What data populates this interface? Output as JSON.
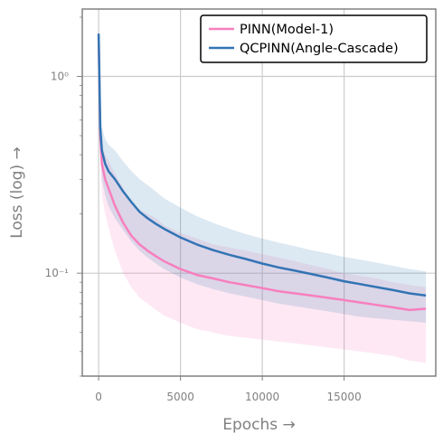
{
  "chart_data": {
    "type": "line",
    "title": "",
    "xlabel": "Epochs →",
    "ylabel": "Loss (log) →",
    "xlim": [
      -1000,
      20600
    ],
    "ylim": [
      0.03,
      2.2
    ],
    "yscale": "log",
    "grid": true,
    "legend_position": "top-right",
    "x_ticks": [
      0,
      5000,
      10000,
      15000
    ],
    "x_tick_labels": [
      "0",
      "5000",
      "10000",
      "15000"
    ],
    "y_ticks": [
      1,
      0.1
    ],
    "y_tick_labels": [
      "10⁰",
      "10⁻¹"
    ],
    "x": [
      0,
      100,
      200,
      400,
      600,
      1000,
      1500,
      2000,
      2500,
      3000,
      3500,
      4000,
      5000,
      6000,
      7000,
      8000,
      9000,
      10000,
      11000,
      12000,
      13000,
      14000,
      15000,
      16000,
      17000,
      18000,
      19000,
      20000
    ],
    "series": [
      {
        "name": "PINN(Model-1)",
        "color": "#f77fbe",
        "values": [
          1.6,
          0.5,
          0.36,
          0.3,
          0.27,
          0.22,
          0.18,
          0.155,
          0.14,
          0.13,
          0.122,
          0.115,
          0.105,
          0.098,
          0.094,
          0.09,
          0.087,
          0.084,
          0.081,
          0.079,
          0.077,
          0.075,
          0.073,
          0.071,
          0.069,
          0.067,
          0.065,
          0.066
        ],
        "band_low": [
          1.5,
          0.4,
          0.25,
          0.2,
          0.17,
          0.13,
          0.1,
          0.085,
          0.075,
          0.07,
          0.065,
          0.061,
          0.056,
          0.052,
          0.05,
          0.048,
          0.047,
          0.046,
          0.045,
          0.044,
          0.043,
          0.042,
          0.041,
          0.04,
          0.039,
          0.038,
          0.036,
          0.035
        ],
        "band_high": [
          1.7,
          0.6,
          0.45,
          0.4,
          0.37,
          0.32,
          0.27,
          0.23,
          0.21,
          0.2,
          0.19,
          0.175,
          0.16,
          0.15,
          0.14,
          0.135,
          0.13,
          0.125,
          0.12,
          0.115,
          0.11,
          0.105,
          0.1,
          0.097,
          0.094,
          0.09,
          0.087,
          0.085
        ]
      },
      {
        "name": "QCPINN(Angle-Cascade)",
        "color": "#3274b4",
        "values": [
          1.65,
          0.55,
          0.42,
          0.36,
          0.33,
          0.3,
          0.26,
          0.23,
          0.205,
          0.19,
          0.178,
          0.168,
          0.152,
          0.14,
          0.131,
          0.124,
          0.118,
          0.112,
          0.107,
          0.103,
          0.099,
          0.095,
          0.091,
          0.088,
          0.085,
          0.082,
          0.079,
          0.077
        ],
        "band_low": [
          1.55,
          0.45,
          0.3,
          0.25,
          0.22,
          0.19,
          0.165,
          0.145,
          0.13,
          0.12,
          0.112,
          0.105,
          0.095,
          0.088,
          0.083,
          0.079,
          0.076,
          0.073,
          0.07,
          0.068,
          0.066,
          0.064,
          0.062,
          0.06,
          0.059,
          0.058,
          0.057,
          0.056
        ],
        "band_high": [
          1.75,
          0.65,
          0.55,
          0.48,
          0.45,
          0.42,
          0.37,
          0.33,
          0.3,
          0.28,
          0.26,
          0.24,
          0.215,
          0.195,
          0.18,
          0.168,
          0.158,
          0.15,
          0.143,
          0.137,
          0.131,
          0.126,
          0.121,
          0.117,
          0.113,
          0.109,
          0.105,
          0.102
        ]
      }
    ]
  }
}
